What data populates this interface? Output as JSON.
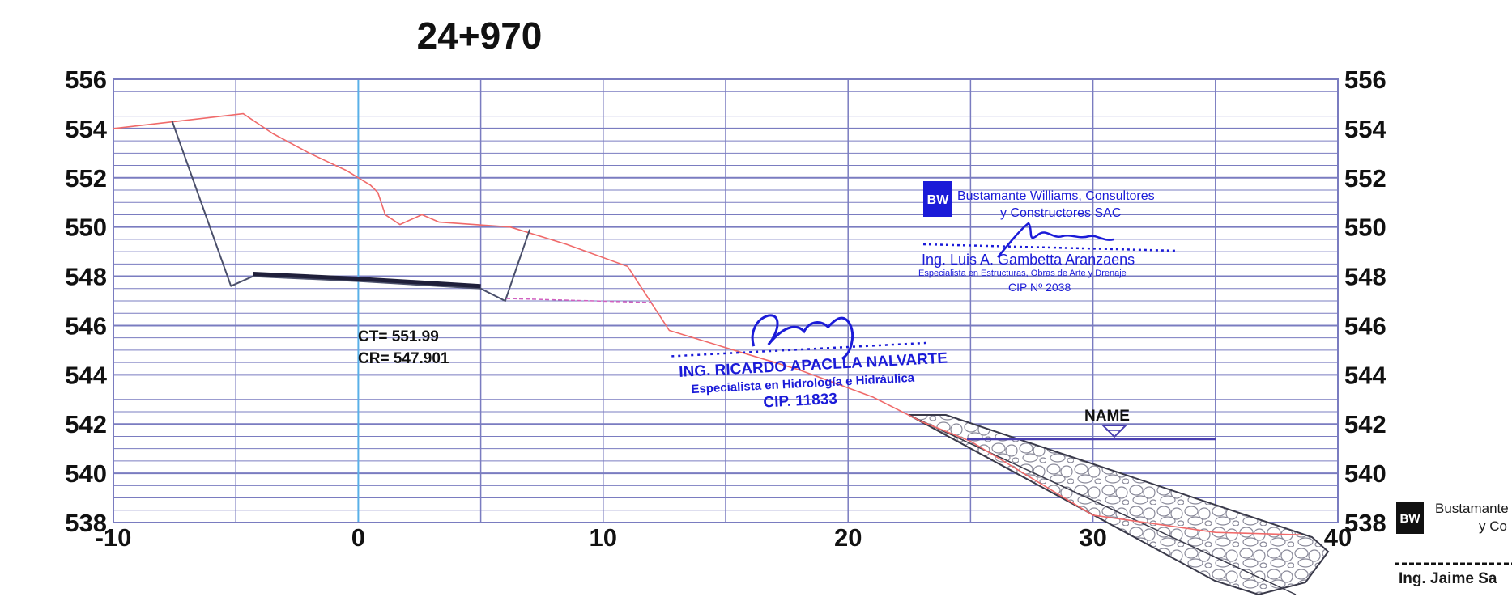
{
  "chart_data": {
    "type": "line",
    "title": "24+970",
    "xlabel": "",
    "ylabel": "",
    "xlim": [
      -10,
      40
    ],
    "ylim": [
      538,
      556
    ],
    "x_ticks": [
      -10,
      0,
      10,
      20,
      30,
      40
    ],
    "y_ticks": [
      538,
      540,
      542,
      544,
      546,
      548,
      550,
      552,
      554,
      556
    ],
    "grid": true,
    "series": [
      {
        "color": "#f06a6a",
        "x": [
          -10,
          -4.7,
          -3.5,
          -2,
          -0.5,
          0.5,
          0.8,
          1.1,
          1.7,
          2.6,
          3.3,
          6.2,
          8.5,
          11,
          12.7,
          15,
          18,
          21,
          23,
          25,
          27,
          30,
          35,
          38.5
        ],
        "y": [
          554,
          554.6,
          553.8,
          553,
          552.3,
          551.7,
          551.4,
          550.5,
          550.1,
          550.5,
          550.2,
          550,
          549.3,
          548.4,
          545.8,
          545.1,
          544.2,
          543.1,
          542.1,
          541.3,
          540.1,
          538.3,
          537.6,
          537.5
        ]
      },
      {
        "color": "#4a4f6a",
        "x": [
          -7.6,
          -5.2,
          -4.3,
          0,
          5,
          6,
          7
        ],
        "y": [
          554.3,
          547.6,
          548,
          547.8,
          547.5,
          547,
          549.9
        ]
      },
      {
        "color": "#1f1f3a",
        "x": [
          -4.3,
          0,
          5
        ],
        "y": [
          548.1,
          547.9,
          547.6
        ]
      }
    ],
    "annotations": [
      {
        "text": "CT= 551.99"
      },
      {
        "text": "CR= 547.901"
      },
      {
        "text": "NAME"
      }
    ]
  },
  "stamps": {
    "company": {
      "line1": "Bustamante Williams, Consultores",
      "line2": "y Constructores SAC",
      "name": "Ing. Luis A. Gambetta Aranzaens",
      "specialty": "Especialista en Estructuras, Obras de Arte y Drenaje",
      "cip": "CIP Nº 2038",
      "logo_text": "BW"
    },
    "hydro": {
      "name": "ING. RICARDO APACLLA NALVARTE",
      "specialty": "Especialista en Hidrología e Hidráulica",
      "cip": "CIP. 11833"
    },
    "right_edge": {
      "line1": "Bustamante",
      "line2": "y Co",
      "name": "Ing. Jaime Sa",
      "logo_text": "BW"
    }
  },
  "colors": {
    "grid": "#7a7cc0",
    "axis_zero": "#5ab0e8",
    "terrain": "#f06a6a",
    "stamp_blue": "#1b1bd8"
  }
}
